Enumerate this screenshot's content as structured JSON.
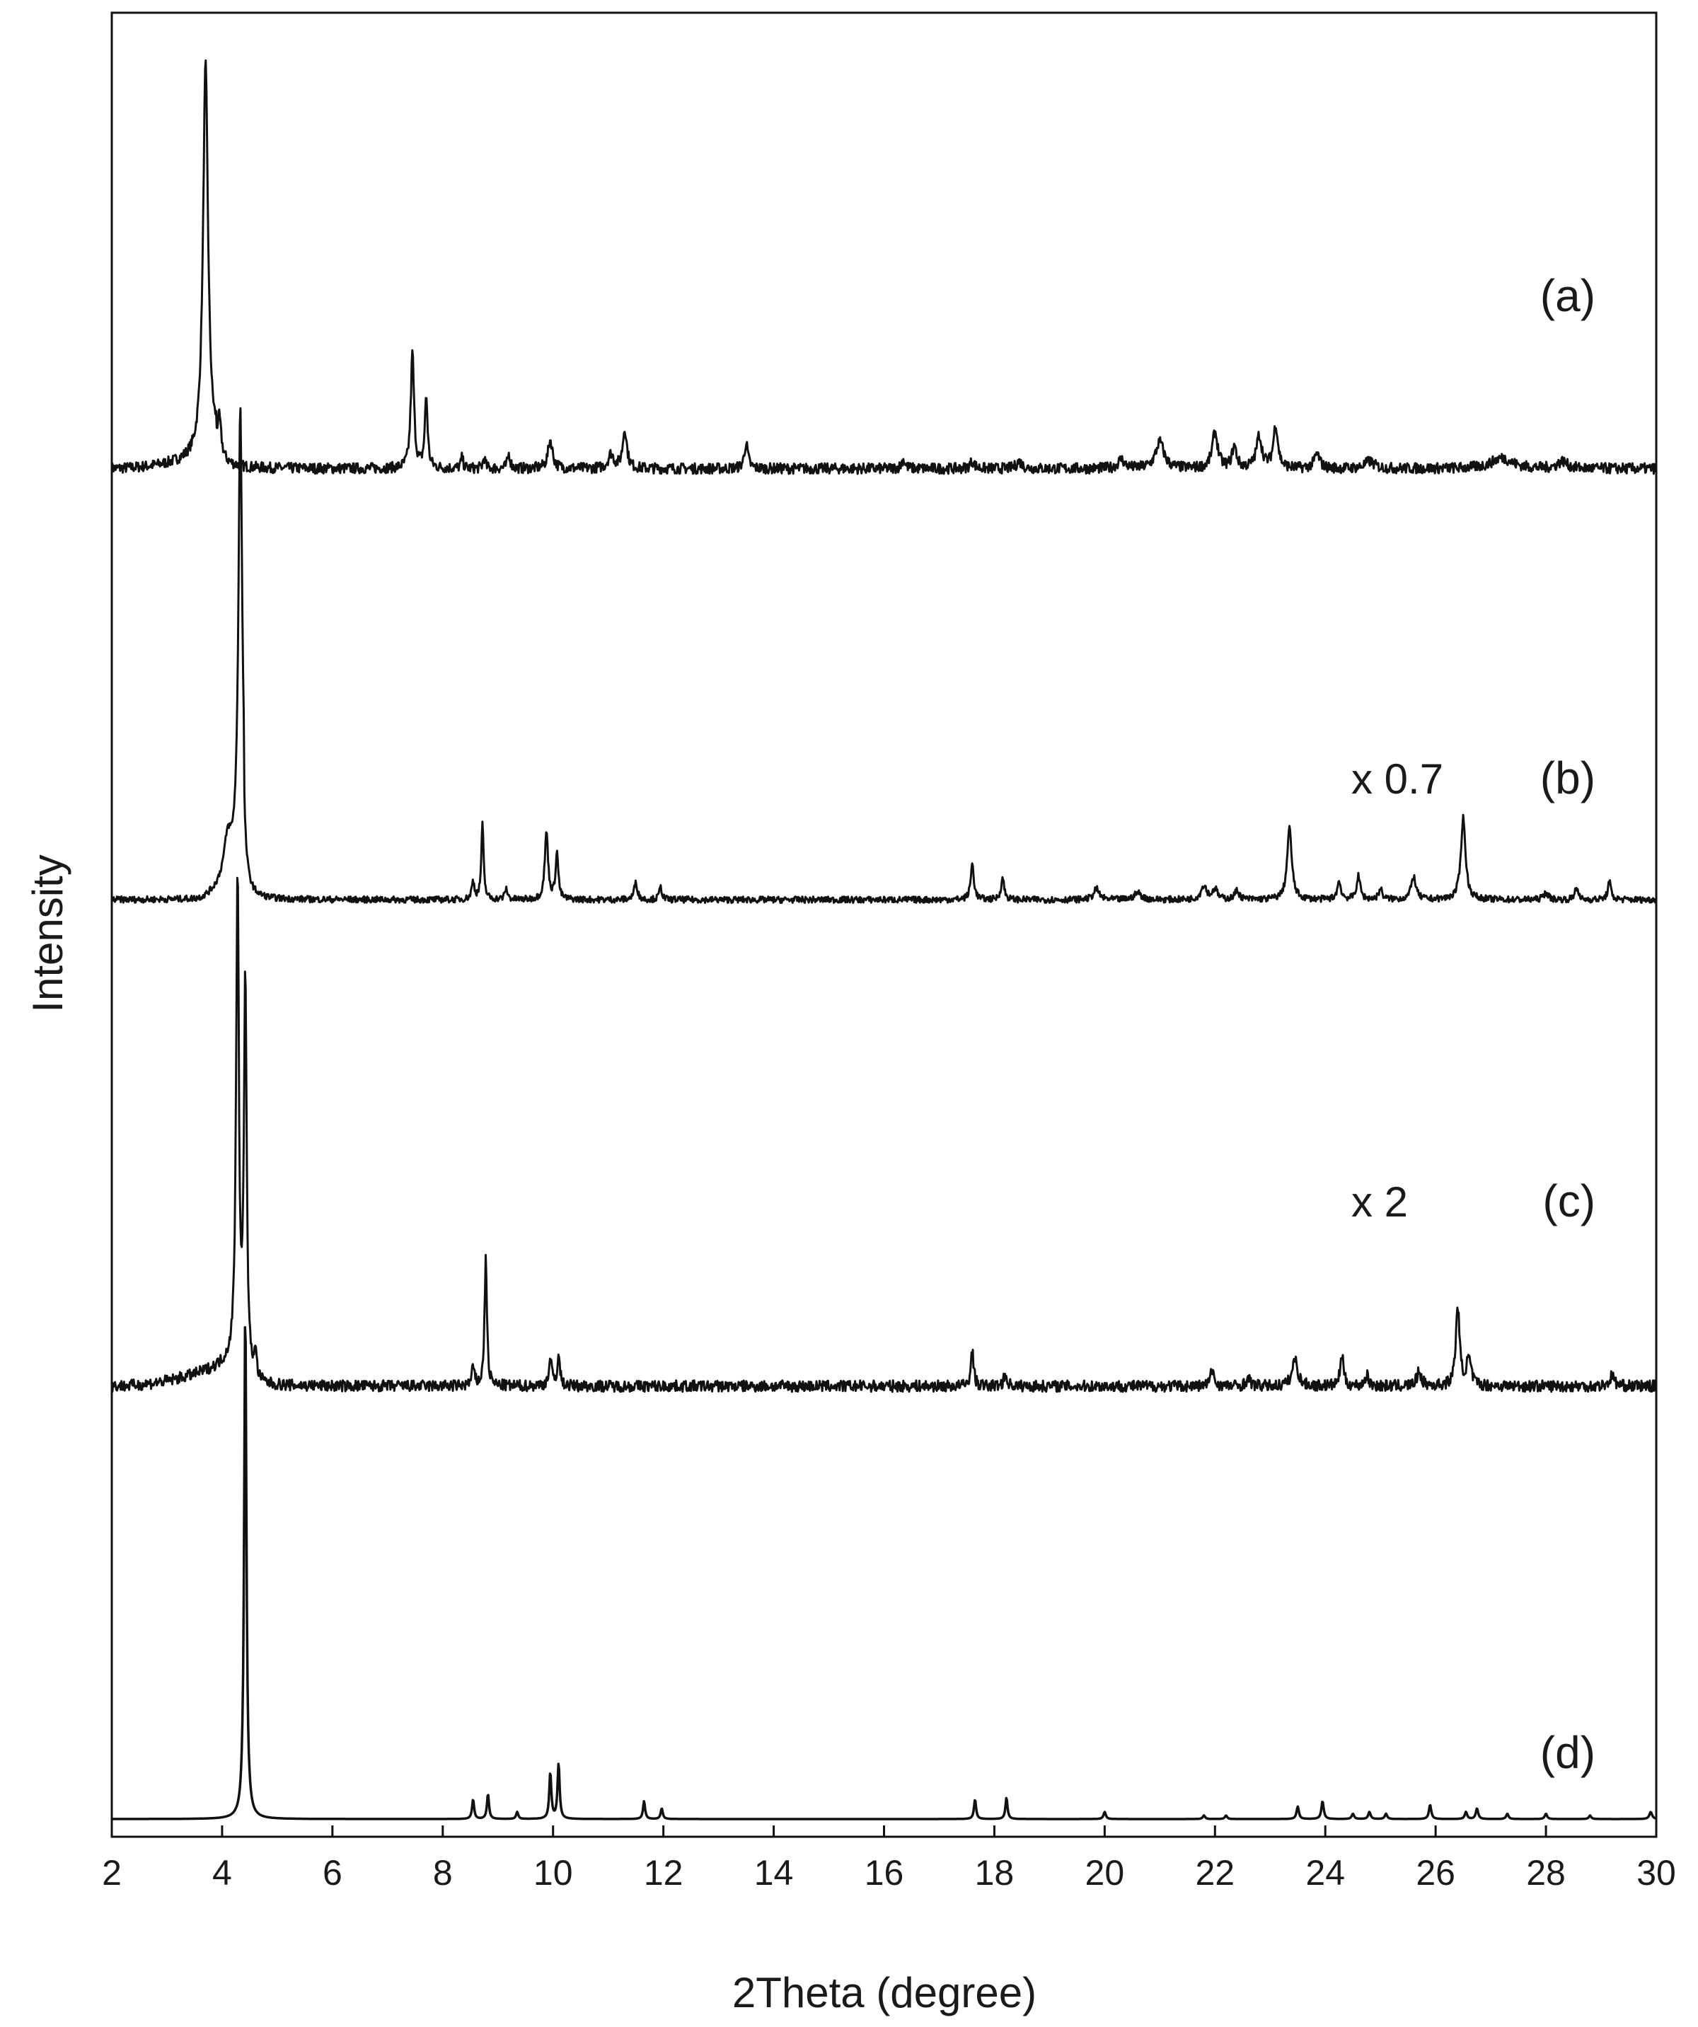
{
  "chart_data": {
    "type": "line",
    "xlabel": "2Theta (degree)",
    "ylabel": "Intensity",
    "xlim": [
      2,
      30
    ],
    "xticks": [
      2,
      4,
      6,
      8,
      10,
      12,
      14,
      16,
      18,
      20,
      22,
      24,
      26,
      28,
      30
    ],
    "ylim": [
      0,
      1.0
    ],
    "grid": false,
    "line_color": "#111111",
    "series": [
      {
        "label": "(a)",
        "annotation": "",
        "baseline": 0.758,
        "noise": 0.003,
        "shoulder": {
          "start": 2.0,
          "rise": 0.008,
          "end": 3.9
        },
        "peaks": [
          [
            3.7,
            0.22,
            0.11
          ],
          [
            3.95,
            0.02,
            0.08
          ],
          [
            7.45,
            0.065,
            0.07
          ],
          [
            7.7,
            0.04,
            0.06
          ],
          [
            8.35,
            0.006,
            0.05
          ],
          [
            8.75,
            0.006,
            0.05
          ],
          [
            9.2,
            0.008,
            0.06
          ],
          [
            9.95,
            0.016,
            0.1
          ],
          [
            11.3,
            0.022,
            0.09
          ],
          [
            11.05,
            0.008,
            0.12
          ],
          [
            13.5,
            0.014,
            0.08
          ],
          [
            16.35,
            0.005,
            0.08
          ],
          [
            17.6,
            0.004,
            0.1
          ],
          [
            18.45,
            0.004,
            0.12
          ],
          [
            20.3,
            0.005,
            0.14
          ],
          [
            21.0,
            0.015,
            0.18
          ],
          [
            22.0,
            0.02,
            0.12
          ],
          [
            22.35,
            0.012,
            0.1
          ],
          [
            22.8,
            0.018,
            0.12
          ],
          [
            23.1,
            0.024,
            0.1
          ],
          [
            23.85,
            0.008,
            0.12
          ],
          [
            24.8,
            0.004,
            0.2
          ],
          [
            27.2,
            0.006,
            0.45
          ],
          [
            28.3,
            0.004,
            0.2
          ]
        ]
      },
      {
        "label": "(b)",
        "annotation": "x 0.7",
        "baseline": 0.516,
        "noise": 0.0018,
        "shoulder": {
          "start": 3.5,
          "rise": 0.03,
          "end": 4.4
        },
        "peaks": [
          [
            4.33,
            0.25,
            0.08
          ],
          [
            4.1,
            0.02,
            0.16
          ],
          [
            8.55,
            0.01,
            0.06
          ],
          [
            8.72,
            0.042,
            0.05
          ],
          [
            9.15,
            0.006,
            0.06
          ],
          [
            9.88,
            0.038,
            0.07
          ],
          [
            10.07,
            0.026,
            0.06
          ],
          [
            11.5,
            0.01,
            0.07
          ],
          [
            11.95,
            0.007,
            0.06
          ],
          [
            17.6,
            0.02,
            0.07
          ],
          [
            18.15,
            0.012,
            0.07
          ],
          [
            19.85,
            0.006,
            0.12
          ],
          [
            20.6,
            0.004,
            0.15
          ],
          [
            21.8,
            0.008,
            0.12
          ],
          [
            22.0,
            0.006,
            0.1
          ],
          [
            22.4,
            0.005,
            0.1
          ],
          [
            23.35,
            0.04,
            0.1
          ],
          [
            24.25,
            0.01,
            0.08
          ],
          [
            24.6,
            0.013,
            0.08
          ],
          [
            25.0,
            0.006,
            0.08
          ],
          [
            25.6,
            0.013,
            0.1
          ],
          [
            26.5,
            0.046,
            0.1
          ],
          [
            28.0,
            0.004,
            0.1
          ],
          [
            28.55,
            0.008,
            0.06
          ],
          [
            29.15,
            0.01,
            0.07
          ]
        ]
      },
      {
        "label": "(c)",
        "annotation": "x 2",
        "baseline": 0.243,
        "noise": 0.0032,
        "shoulder": {
          "start": 2.0,
          "rise": 0.015,
          "end": 4.3
        },
        "peaks": [
          [
            4.28,
            0.27,
            0.06
          ],
          [
            4.42,
            0.225,
            0.06
          ],
          [
            4.6,
            0.015,
            0.06
          ],
          [
            8.55,
            0.01,
            0.06
          ],
          [
            8.78,
            0.073,
            0.05
          ],
          [
            9.95,
            0.014,
            0.07
          ],
          [
            10.1,
            0.016,
            0.06
          ],
          [
            17.6,
            0.02,
            0.06
          ],
          [
            18.2,
            0.006,
            0.08
          ],
          [
            21.95,
            0.009,
            0.08
          ],
          [
            22.6,
            0.004,
            0.1
          ],
          [
            23.45,
            0.015,
            0.12
          ],
          [
            24.3,
            0.018,
            0.07
          ],
          [
            24.75,
            0.006,
            0.08
          ],
          [
            25.7,
            0.008,
            0.1
          ],
          [
            26.4,
            0.045,
            0.08
          ],
          [
            26.6,
            0.015,
            0.1
          ],
          [
            29.2,
            0.006,
            0.1
          ]
        ]
      },
      {
        "label": "(d)",
        "annotation": "",
        "baseline": 0.0,
        "noise": 0.0,
        "shoulder": null,
        "peaks": [
          [
            4.42,
            0.287,
            0.05
          ],
          [
            8.55,
            0.011,
            0.045
          ],
          [
            8.82,
            0.014,
            0.045
          ],
          [
            9.35,
            0.004,
            0.045
          ],
          [
            9.95,
            0.026,
            0.045
          ],
          [
            10.1,
            0.031,
            0.045
          ],
          [
            11.65,
            0.01,
            0.045
          ],
          [
            11.97,
            0.006,
            0.045
          ],
          [
            17.65,
            0.011,
            0.045
          ],
          [
            18.22,
            0.012,
            0.045
          ],
          [
            20.0,
            0.004,
            0.05
          ],
          [
            21.8,
            0.002,
            0.05
          ],
          [
            22.2,
            0.002,
            0.05
          ],
          [
            23.5,
            0.007,
            0.05
          ],
          [
            23.95,
            0.01,
            0.05
          ],
          [
            24.5,
            0.003,
            0.05
          ],
          [
            24.8,
            0.004,
            0.05
          ],
          [
            25.1,
            0.003,
            0.05
          ],
          [
            25.9,
            0.008,
            0.05
          ],
          [
            26.55,
            0.004,
            0.05
          ],
          [
            26.75,
            0.006,
            0.05
          ],
          [
            27.3,
            0.003,
            0.05
          ],
          [
            28.0,
            0.003,
            0.05
          ],
          [
            28.8,
            0.002,
            0.05
          ],
          [
            29.9,
            0.004,
            0.06
          ]
        ]
      }
    ]
  }
}
